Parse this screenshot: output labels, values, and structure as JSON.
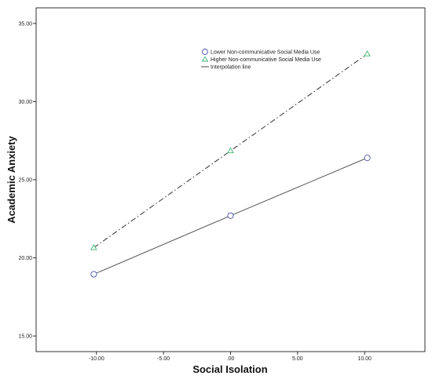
{
  "chart_data": {
    "type": "line",
    "xlabel": "Social Isolation",
    "ylabel": "Academic Anxiety",
    "xlim": [
      -14.5,
      14.5
    ],
    "ylim": [
      14.0,
      36.0
    ],
    "x_ticks": [
      -10,
      -5,
      0,
      5,
      10
    ],
    "x_tick_labels": [
      "-10.00",
      "-5.00",
      ".00",
      "5.00",
      "10.00"
    ],
    "y_ticks": [
      15,
      20,
      25,
      30,
      35
    ],
    "y_tick_labels": [
      "15.00",
      "20.00",
      "25.00",
      "30.00",
      "35.00"
    ],
    "grid": false,
    "legend_position": "top-center",
    "series": [
      {
        "name": "Lower Non-communicative Social Media Use",
        "marker": "circle",
        "line": "solid",
        "marker_color": "#4a52a8",
        "line_color": "#555555",
        "x": [
          -10.2,
          0,
          10.2
        ],
        "y": [
          18.95,
          22.7,
          26.4
        ]
      },
      {
        "name": "Higher Non-communicative Social Media Use",
        "marker": "triangle",
        "line": "dash-dot",
        "marker_color": "#3cb371",
        "line_color": "#333333",
        "x": [
          -10.2,
          0,
          10.2
        ],
        "y": [
          20.65,
          26.85,
          33.05
        ]
      }
    ],
    "interpolation_legend_label": "Interpolation line"
  }
}
